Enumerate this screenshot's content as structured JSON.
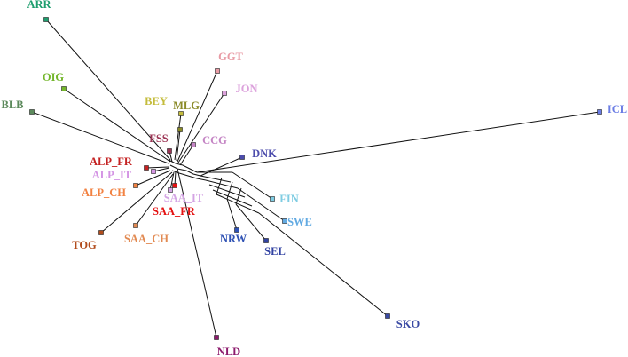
{
  "nodes": [
    {
      "label": "ARR",
      "color": "#1e9e6e"
    },
    {
      "label": "OIG",
      "color": "#74b62c"
    },
    {
      "label": "BLB",
      "color": "#5c8a5c"
    },
    {
      "label": "GGT",
      "color": "#e89aa4"
    },
    {
      "label": "JON",
      "color": "#dca2dc"
    },
    {
      "label": "BEY",
      "color": "#c4bc3c"
    },
    {
      "label": "MLG",
      "color": "#8a8a28"
    },
    {
      "label": "FSS",
      "color": "#9c3454"
    },
    {
      "label": "CCG",
      "color": "#c484c4"
    },
    {
      "label": "DNK",
      "color": "#4c4cac"
    },
    {
      "label": "ICL",
      "color": "#6a7ce4"
    },
    {
      "label": "FIN",
      "color": "#7ecce2"
    },
    {
      "label": "SWE",
      "color": "#62aae2"
    },
    {
      "label": "NRW",
      "color": "#2f52b4"
    },
    {
      "label": "SEL",
      "color": "#3142a2"
    },
    {
      "label": "SKO",
      "color": "#3a4aa4"
    },
    {
      "label": "NLD",
      "color": "#8c1a6c"
    },
    {
      "label": "ALP_FR",
      "color": "#c42222"
    },
    {
      "label": "ALP_IT",
      "color": "#d494e4"
    },
    {
      "label": "ALP_CH",
      "color": "#f28242"
    },
    {
      "label": "SAA_IT",
      "color": "#d4a4e4"
    },
    {
      "label": "SAA_FR",
      "color": "#e41212"
    },
    {
      "label": "SAA_CH",
      "color": "#e28a52"
    },
    {
      "label": "TOG",
      "color": "#b24c1c"
    }
  ]
}
